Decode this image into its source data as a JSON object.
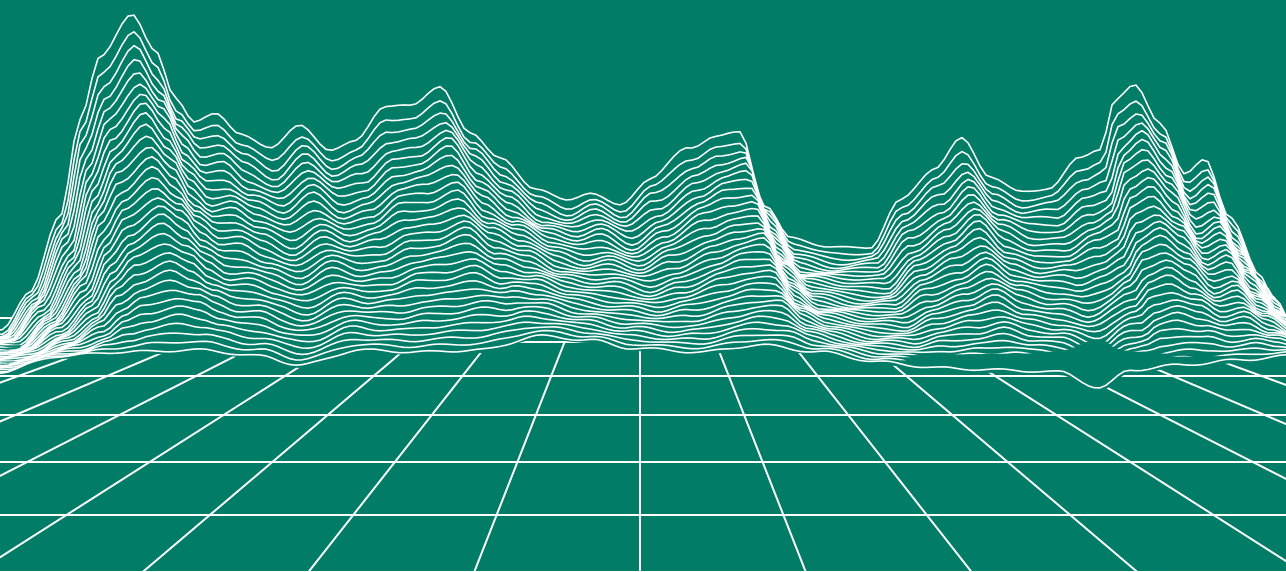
{
  "scene": {
    "background_color": "#007c67",
    "line_color": "#ffffff",
    "description_kind": "wireframe-terrain-over-perspective-grid"
  }
}
